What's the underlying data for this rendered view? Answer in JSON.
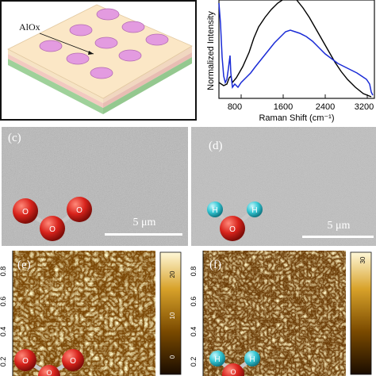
{
  "schematic": {
    "material_label": "AlOx"
  },
  "raman": {
    "ylabel": "Normalized Intensity",
    "xlabel": "Raman Shift (cm⁻¹)",
    "xticks": [
      "800",
      "1600",
      "2400",
      "3200"
    ]
  },
  "sem_c": {
    "label": "(c)",
    "scale": "5 μm",
    "molecule": [
      "O",
      "O",
      "O"
    ]
  },
  "sem_d": {
    "label": "(d)",
    "scale": "5 μm",
    "molecule": [
      "H",
      "H",
      "O"
    ]
  },
  "afm_e": {
    "label": "(e)",
    "yticks": [
      "0.8",
      "0.6",
      "0.4",
      "0.2"
    ],
    "cbar_ticks": [
      "20",
      "10",
      "0"
    ],
    "molecule": [
      "O",
      "O",
      "O"
    ]
  },
  "afm_f": {
    "label": "(f)",
    "yticks": [
      "0.8",
      "0.6",
      "0.4",
      "0.2"
    ],
    "cbar_ticks": [
      "30"
    ],
    "molecule": [
      "H",
      "H",
      "O"
    ]
  },
  "colors": {
    "oxygen": "#d8231c",
    "hydrogen": "#34c6d3",
    "black_curve": "#000000",
    "blue_curve": "#1a2bd6"
  }
}
